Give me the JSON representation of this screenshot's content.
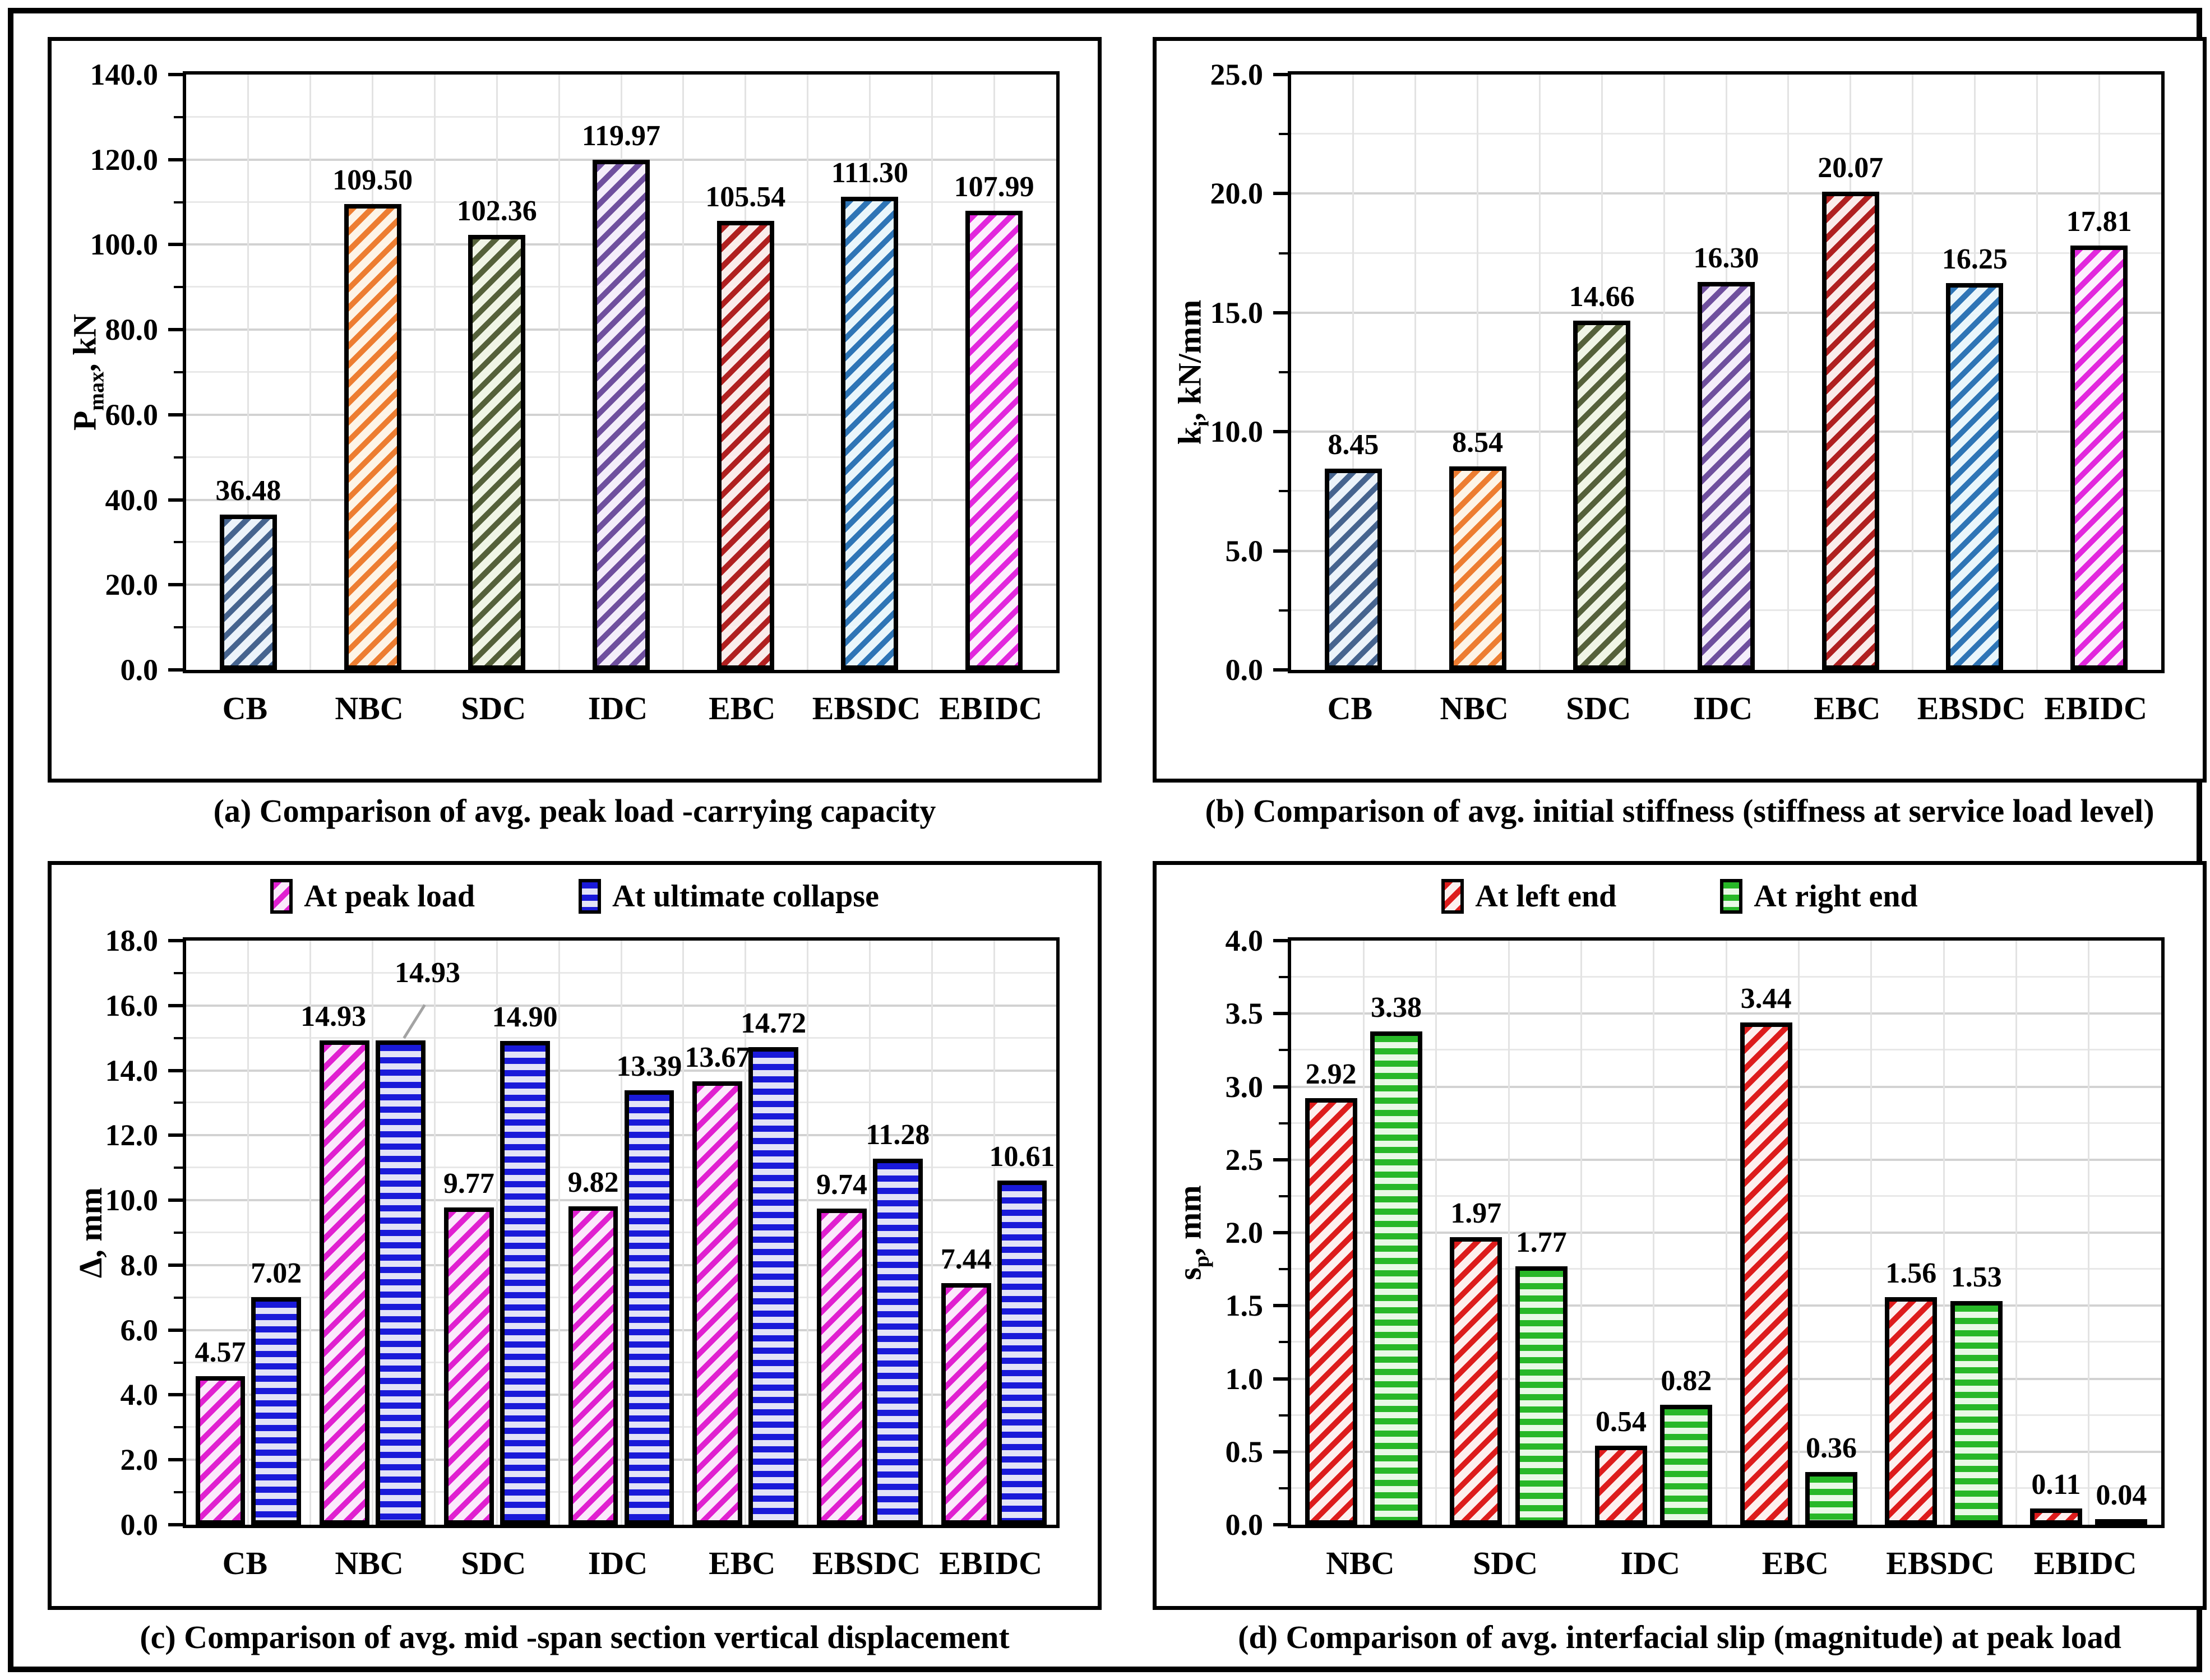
{
  "figure": {
    "description": "Four-panel bar chart comparison figure for beam specimens"
  },
  "chart_data": [
    {
      "type": "bar",
      "panel": "a",
      "caption": "(a) Comparison of avg. peak load -carrying capacity",
      "ylabel": {
        "pre": "P",
        "sub": "max",
        "post": ", kN"
      },
      "ylim": [
        0,
        140
      ],
      "ytick_major": 20,
      "ytick_minor": 10,
      "grid": "on",
      "legend_position": "none",
      "categories": [
        "CB",
        "NBC",
        "SDC",
        "IDC",
        "EBC",
        "EBSDC",
        "EBIDC"
      ],
      "series": [
        {
          "name": "Peak load capacity",
          "hatch": "diagonal",
          "values": [
            36.48,
            109.5,
            102.36,
            119.97,
            105.54,
            111.3,
            107.99
          ],
          "labels": [
            "36.48",
            "109.50",
            "102.36",
            "119.97",
            "105.54",
            "111.30",
            "107.99"
          ],
          "colors": [
            {
              "stripe": "#46648f",
              "bg": "#ecf3fa"
            },
            {
              "stripe": "#ed7d31",
              "bg": "#fdf4e7"
            },
            {
              "stripe": "#55613a",
              "bg": "#f0f5e6"
            },
            {
              "stripe": "#6f4f9e",
              "bg": "#f4eefa"
            },
            {
              "stripe": "#b02020",
              "bg": "#faeceb"
            },
            {
              "stripe": "#2e75b6",
              "bg": "#eaf6fb"
            },
            {
              "stripe": "#e227dd",
              "bg": "#fdeffd"
            }
          ]
        }
      ]
    },
    {
      "type": "bar",
      "panel": "b",
      "caption": "(b) Comparison of avg. initial stiffness (stiffness at service load level)",
      "ylabel": {
        "pre": "k",
        "sub": "i",
        "post": ", kN/mm"
      },
      "ylim": [
        0,
        25
      ],
      "ytick_major": 5,
      "ytick_minor": 2.5,
      "grid": "on",
      "legend_position": "none",
      "categories": [
        "CB",
        "NBC",
        "SDC",
        "IDC",
        "EBC",
        "EBSDC",
        "EBIDC"
      ],
      "series": [
        {
          "name": "Initial stiffness",
          "hatch": "diagonal",
          "values": [
            8.45,
            8.54,
            14.66,
            16.3,
            20.07,
            16.25,
            17.81
          ],
          "labels": [
            "8.45",
            "8.54",
            "14.66",
            "16.30",
            "20.07",
            "16.25",
            "17.81"
          ],
          "colors": [
            {
              "stripe": "#46648f",
              "bg": "#ecf3fa"
            },
            {
              "stripe": "#ed7d31",
              "bg": "#fdf4e7"
            },
            {
              "stripe": "#55613a",
              "bg": "#f0f5e6"
            },
            {
              "stripe": "#6f4f9e",
              "bg": "#f4eefa"
            },
            {
              "stripe": "#b02020",
              "bg": "#faeceb"
            },
            {
              "stripe": "#2e75b6",
              "bg": "#eaf6fb"
            },
            {
              "stripe": "#e227dd",
              "bg": "#fdeffd"
            }
          ]
        }
      ]
    },
    {
      "type": "bar",
      "panel": "c",
      "caption": "(c) Comparison of avg. mid -span section vertical displacement",
      "ylabel": {
        "pre": "Δ",
        "sub": "",
        "post": ", mm"
      },
      "ylim": [
        0,
        18
      ],
      "ytick_major": 2,
      "ytick_minor": 1,
      "grid": "on",
      "legend_position": "top",
      "legend": [
        "At peak load",
        "At ultimate collapse"
      ],
      "categories": [
        "CB",
        "NBC",
        "SDC",
        "IDC",
        "EBC",
        "EBSDC",
        "EBIDC"
      ],
      "series": [
        {
          "name": "At peak load",
          "hatch": "diagonal",
          "color": {
            "stripe": "#e020d0",
            "bg": "#fbe9fb"
          },
          "values": [
            4.57,
            14.93,
            9.77,
            9.82,
            13.67,
            9.74,
            7.44
          ],
          "labels": [
            "4.57",
            "14.93",
            "9.77",
            "9.82",
            "13.67",
            "9.74",
            "7.44"
          ]
        },
        {
          "name": "At ultimate collapse",
          "hatch": "horizontal",
          "color": {
            "stripe": "#1a1ad9",
            "bg": "#e3e3f7"
          },
          "values": [
            7.02,
            14.93,
            14.9,
            13.39,
            14.72,
            11.28,
            10.61
          ],
          "labels": [
            "7.02",
            "14.93",
            "14.90",
            "13.39",
            "14.72",
            "11.28",
            "10.61"
          ]
        }
      ]
    },
    {
      "type": "bar",
      "panel": "d",
      "caption": "(d) Comparison of avg. interfacial slip (magnitude) at peak load",
      "ylabel": {
        "pre": "s",
        "sub": "p",
        "post": ", mm"
      },
      "ylim": [
        0,
        4
      ],
      "ytick_major": 0.5,
      "ytick_minor": 0.25,
      "grid": "on",
      "legend_position": "top",
      "legend": [
        "At left end",
        "At right end"
      ],
      "categories": [
        "NBC",
        "SDC",
        "IDC",
        "EBC",
        "EBSDC",
        "EBIDC"
      ],
      "series": [
        {
          "name": "At left end",
          "hatch": "diagonal",
          "color": {
            "stripe": "#dd1c1c",
            "bg": "#fdf0ef"
          },
          "values": [
            2.92,
            1.97,
            0.54,
            3.44,
            1.56,
            0.11
          ],
          "labels": [
            "2.92",
            "1.97",
            "0.54",
            "3.44",
            "1.56",
            "0.11"
          ]
        },
        {
          "name": "At right end",
          "hatch": "horizontal",
          "color": {
            "stripe": "#28b828",
            "bg": "#e9f9e6"
          },
          "values": [
            3.38,
            1.77,
            0.82,
            0.36,
            1.53,
            0.04
          ],
          "labels": [
            "3.38",
            "1.77",
            "0.82",
            "0.36",
            "1.53",
            "0.04"
          ]
        }
      ]
    }
  ]
}
